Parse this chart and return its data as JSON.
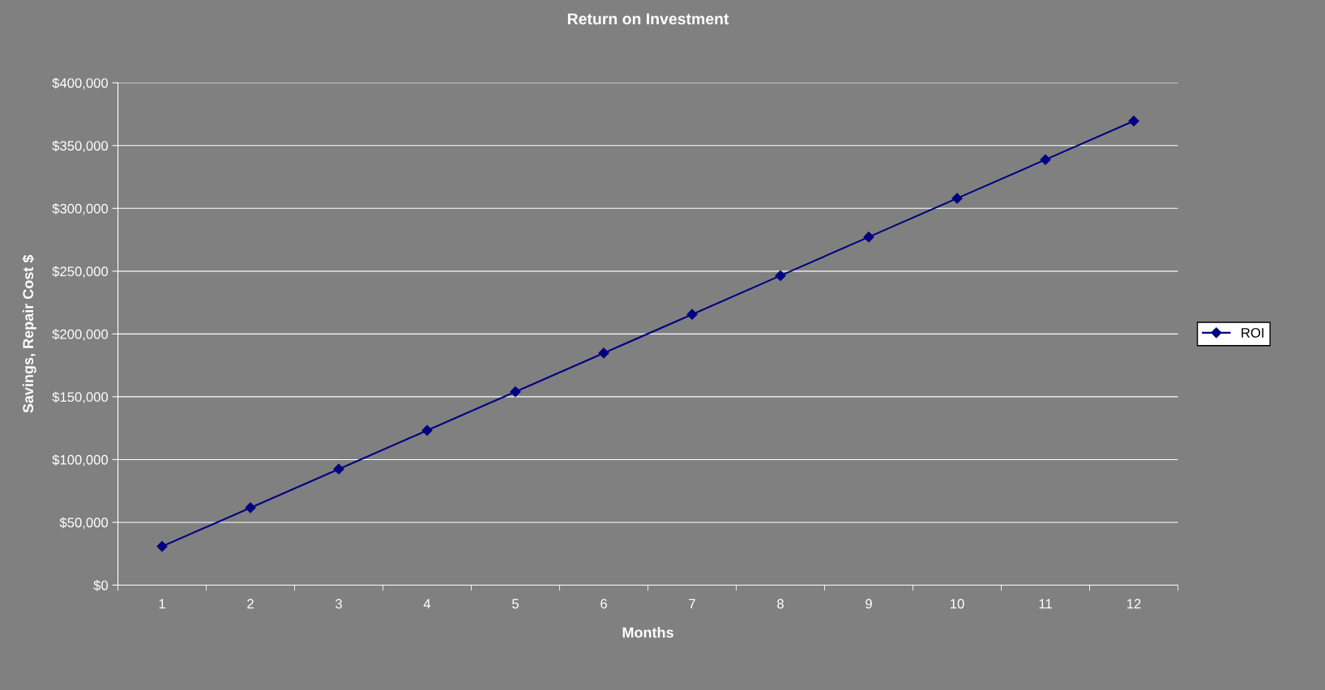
{
  "chart_data": {
    "type": "line",
    "title": "Return on Investment",
    "xlabel": "Months",
    "ylabel": "Savings, Repair Cost $",
    "categories": [
      "1",
      "2",
      "3",
      "4",
      "5",
      "6",
      "7",
      "8",
      "9",
      "10",
      "11",
      "12"
    ],
    "series": [
      {
        "name": "ROI",
        "color": "#000080",
        "values": [
          30800,
          61600,
          92400,
          123200,
          154000,
          184800,
          215600,
          246400,
          277200,
          308000,
          338800,
          369600
        ]
      }
    ],
    "ylim": [
      0,
      400000
    ],
    "yticks": [
      {
        "value": 0,
        "label": "$0"
      },
      {
        "value": 50000,
        "label": "$50,000"
      },
      {
        "value": 100000,
        "label": "$100,000"
      },
      {
        "value": 150000,
        "label": "$150,000"
      },
      {
        "value": 200000,
        "label": "$200,000"
      },
      {
        "value": 250000,
        "label": "$250,000"
      },
      {
        "value": 300000,
        "label": "$300,000"
      },
      {
        "value": 350000,
        "label": "$350,000"
      },
      {
        "value": 400000,
        "label": "$400,000"
      }
    ],
    "grid": "y",
    "legend": "right",
    "marker": "diamond",
    "line_style": "solid"
  }
}
